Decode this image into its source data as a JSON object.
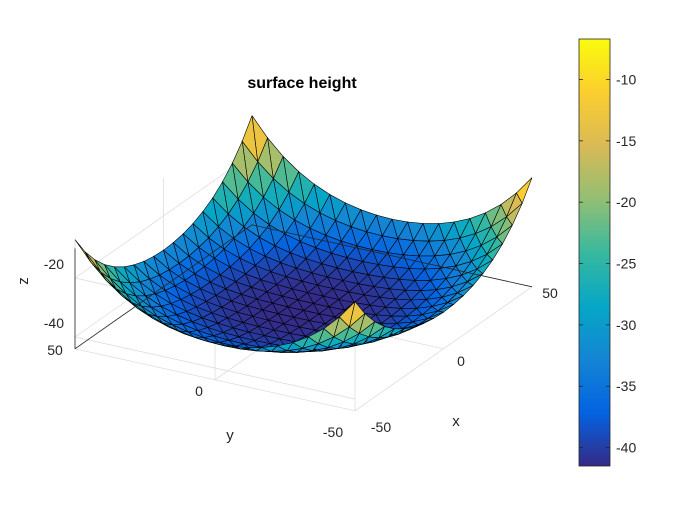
{
  "chart_data": {
    "type": "surface",
    "title": "surface height",
    "xlabel": "x",
    "ylabel": "y",
    "zlabel": "z",
    "xlim": [
      -50,
      50
    ],
    "ylim": [
      -50,
      50
    ],
    "zlim": [
      -44,
      -7
    ],
    "x_ticks": [
      {
        "value": -50,
        "label": "-50"
      },
      {
        "value": 0,
        "label": "0"
      },
      {
        "value": 50,
        "label": "50"
      }
    ],
    "y_ticks": [
      {
        "value": -50,
        "label": "-50"
      },
      {
        "value": 0,
        "label": "0"
      },
      {
        "value": 50,
        "label": "50"
      }
    ],
    "z_ticks": [
      {
        "value": -40,
        "label": "-40"
      },
      {
        "value": -20,
        "label": "-20"
      }
    ],
    "colorbar": {
      "clim": [
        -41.5,
        -6.7
      ],
      "ticks": [
        {
          "value": -10,
          "label": "-10"
        },
        {
          "value": -15,
          "label": "-15"
        },
        {
          "value": -20,
          "label": "-20"
        },
        {
          "value": -25,
          "label": "-25"
        },
        {
          "value": -30,
          "label": "-30"
        },
        {
          "value": -35,
          "label": "-35"
        },
        {
          "value": -40,
          "label": "-40"
        }
      ]
    },
    "surface": {
      "function": "paraboloid",
      "min_z": -41.5,
      "max_z": -7,
      "grid_n": 18,
      "mesh": "triangular",
      "edge_color": "#000000",
      "colormap": "parula"
    },
    "grid": true,
    "colormap_stops": [
      "#352a87",
      "#0363e1",
      "#1485d4",
      "#06a7c6",
      "#38b99e",
      "#92bf73",
      "#d9ba56",
      "#fcce2e",
      "#f9fb0e"
    ]
  }
}
